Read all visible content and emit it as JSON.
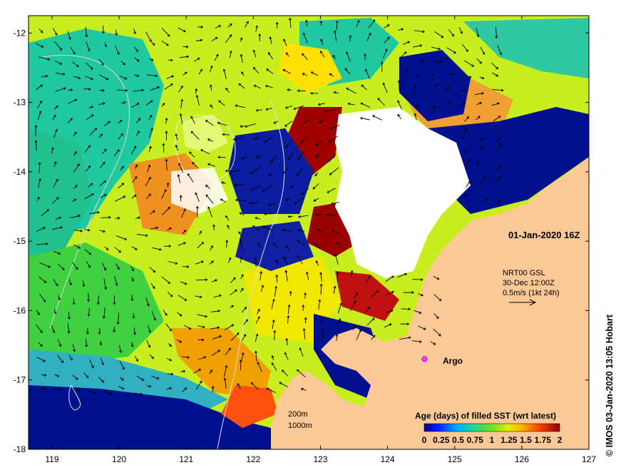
{
  "map": {
    "date_label": "01-Jan-2020 16Z",
    "current_product": "NRT00 GSL",
    "current_date": "30-Dec 12:00Z",
    "current_scale": "0.5m/s (1kt 24h)",
    "argo_label": "Argo",
    "argo_position": {
      "lon": 124.55,
      "lat": -16.7
    },
    "isobaths": [
      "200m",
      "1000m"
    ],
    "credit": "© IMOS 03-Jan-2020 13:05 Hobart",
    "colorbar": {
      "title": "Age (days) of filled SST (wrt latest)",
      "tick_labels": [
        "0",
        "0.25",
        "0.5",
        "0.75",
        "1",
        "1.25",
        "1.5",
        "1.75",
        "2"
      ],
      "colors": [
        "#00008f",
        "#0040ff",
        "#00bfff",
        "#20d0a0",
        "#40e040",
        "#a0f000",
        "#ffff00",
        "#ff9f00",
        "#ff3000",
        "#8f0000"
      ]
    },
    "lon_ticks": [
      "119",
      "120",
      "121",
      "122",
      "123",
      "124",
      "125",
      "126",
      "127"
    ],
    "lat_ticks": [
      "-12",
      "-13",
      "-14",
      "-15",
      "-16",
      "-17",
      "-18"
    ],
    "colors": {
      "land": "#fbc896",
      "no_data": "#ffffff",
      "argo": "#ff40ff"
    }
  }
}
